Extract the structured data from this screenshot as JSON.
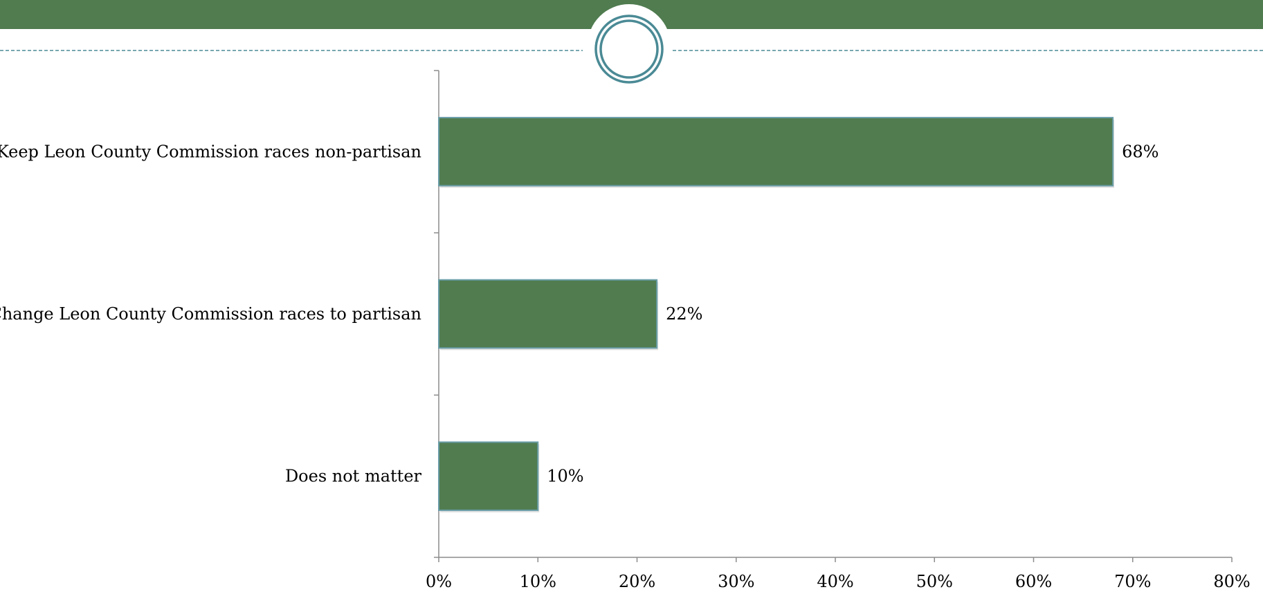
{
  "theme": {
    "accent": "#507c50",
    "ring": "#4a8a95",
    "dash": "#4a8a95",
    "bar_border": "#6a9ea8",
    "axis": "#8c8c8c"
  },
  "chart_data": {
    "type": "bar",
    "orientation": "horizontal",
    "categories": [
      "Keep Leon County Commission races non-partisan",
      "Change Leon County Commission races to partisan",
      "Does not matter"
    ],
    "values": [
      68,
      22,
      10
    ],
    "value_labels": [
      "68%",
      "22%",
      "10%"
    ],
    "xlim": [
      0,
      80
    ],
    "xticks": [
      0,
      10,
      20,
      30,
      40,
      50,
      60,
      70,
      80
    ],
    "xtick_labels": [
      "0%",
      "10%",
      "20%",
      "30%",
      "40%",
      "50%",
      "60%",
      "70%",
      "80%"
    ],
    "grid": false,
    "legend": "none",
    "bar_color": "#507c50"
  }
}
